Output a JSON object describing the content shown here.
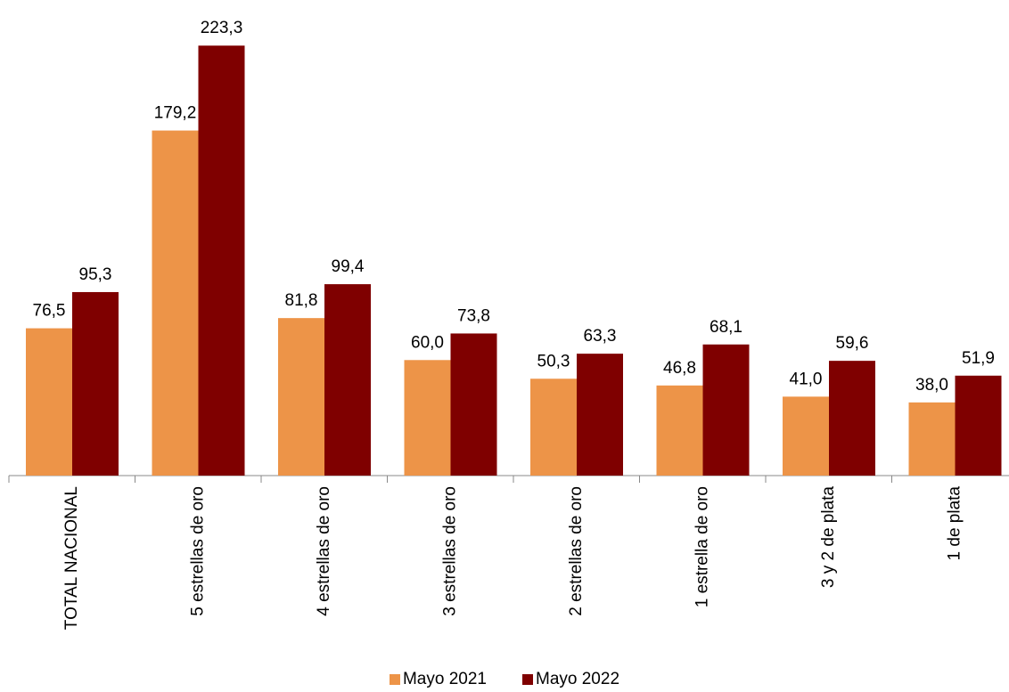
{
  "chart_data": {
    "type": "bar",
    "categories": [
      "TOTAL NACIONAL",
      "5 estrellas de oro",
      "4 estrellas de oro",
      "3 estrellas de oro",
      "2 estrellas de oro",
      "1 estrella de oro",
      "3 y 2 de plata",
      "1 de plata"
    ],
    "series": [
      {
        "name": "Mayo 2021",
        "color": "#ED9448",
        "values": [
          76.5,
          179.2,
          81.8,
          60.0,
          50.3,
          46.8,
          41.0,
          38.0
        ],
        "labels": [
          "76,5",
          "179,2",
          "81,8",
          "60,0",
          "50,3",
          "46,8",
          "41,0",
          "38,0"
        ]
      },
      {
        "name": "Mayo 2022",
        "color": "#7F0000",
        "values": [
          95.3,
          223.3,
          99.4,
          73.8,
          63.3,
          68.1,
          59.6,
          51.9
        ],
        "labels": [
          "95,3",
          "223,3",
          "99,4",
          "73,8",
          "63,3",
          "68,1",
          "59,6",
          "51,9"
        ]
      }
    ],
    "ylim": [
      0,
      230
    ],
    "grid": false,
    "legend_position": "bottom"
  }
}
